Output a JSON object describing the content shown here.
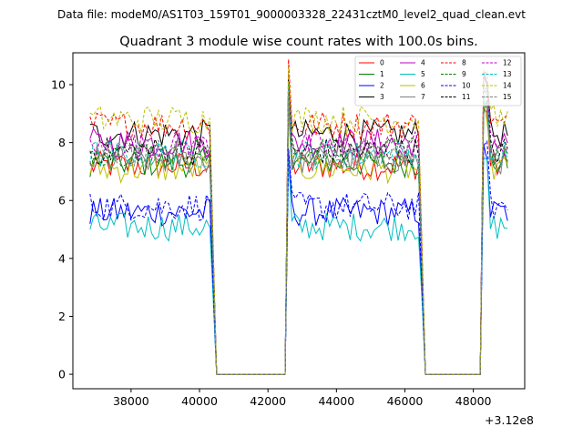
{
  "chart_data": {
    "type": "line",
    "suptitle": "Data file: modeM0/AS1T03_159T01_9000003328_22431cztM0_level2_quad_clean.evt",
    "title": "Quadrant 3 module wise count rates with 100.0s bins.",
    "xlabel": "",
    "ylabel": "",
    "offset_label": "+3.12e8",
    "xlim": [
      36300,
      49500
    ],
    "ylim": [
      -0.5,
      11.1
    ],
    "xticks": [
      38000,
      40000,
      42000,
      44000,
      46000,
      48000
    ],
    "xtick_labels": [
      "38000",
      "40000",
      "42000",
      "44000",
      "46000",
      "48000"
    ],
    "yticks": [
      0,
      2,
      4,
      6,
      8,
      10
    ],
    "ytick_labels": [
      "0",
      "2",
      "4",
      "6",
      "8",
      "10"
    ],
    "legend_position": "top-right",
    "bin_size_s": 100,
    "segments": [
      [
        36800,
        40300
      ],
      [
        42600,
        46400
      ],
      [
        48300,
        49050
      ]
    ],
    "gaps": [
      [
        40500,
        42500
      ],
      [
        46600,
        48200
      ]
    ],
    "series": [
      {
        "name": "0",
        "color": "#ff0000",
        "dash": false,
        "mean": 7.2
      },
      {
        "name": "1",
        "color": "#008000",
        "dash": false,
        "mean": 7.3
      },
      {
        "name": "2",
        "color": "#0000ff",
        "dash": false,
        "mean": 5.6
      },
      {
        "name": "3",
        "color": "#000000",
        "dash": false,
        "mean": 8.3
      },
      {
        "name": "4",
        "color": "#bf00bf",
        "dash": false,
        "mean": 8.0
      },
      {
        "name": "5",
        "color": "#00bfbf",
        "dash": false,
        "mean": 5.1
      },
      {
        "name": "6",
        "color": "#bfbf00",
        "dash": false,
        "mean": 7.1
      },
      {
        "name": "7",
        "color": "#808080",
        "dash": false,
        "mean": 7.4
      },
      {
        "name": "8",
        "color": "#ff0000",
        "dash": true,
        "mean": 8.6
      },
      {
        "name": "9",
        "color": "#008000",
        "dash": true,
        "mean": 7.7
      },
      {
        "name": "10",
        "color": "#0000ff",
        "dash": true,
        "mean": 5.8
      },
      {
        "name": "11",
        "color": "#000000",
        "dash": true,
        "mean": 7.7
      },
      {
        "name": "12",
        "color": "#bf00bf",
        "dash": true,
        "mean": 7.9
      },
      {
        "name": "13",
        "color": "#00bfbf",
        "dash": true,
        "mean": 7.6
      },
      {
        "name": "14",
        "color": "#bfbf00",
        "dash": true,
        "mean": 8.8
      },
      {
        "name": "15",
        "color": "#808080",
        "dash": true,
        "mean": 7.6
      }
    ]
  }
}
